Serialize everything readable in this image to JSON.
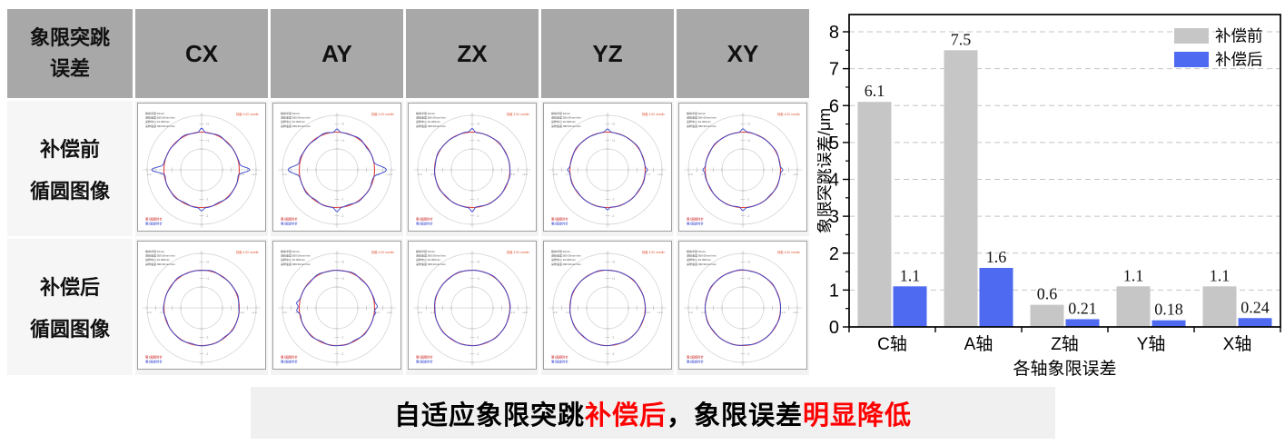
{
  "table": {
    "header": {
      "line1": "象限突跳",
      "line2": "误差"
    },
    "columns": [
      "CX",
      "AY",
      "ZX",
      "YZ",
      "XY"
    ],
    "row_labels": [
      {
        "line1": "补偿前",
        "line2": "循圆图像"
      },
      {
        "line1": "补偿后",
        "line2": "循圆图像"
      }
    ]
  },
  "plot_common": {
    "scale_label": "刻度 4.00 um/div",
    "param_lines": [
      "横向半径:10mm",
      "进给速度:500.00mm/min",
      "采样中心:10.000mm",
      "采样速度:499.92mm/min"
    ],
    "legend_lines": [
      {
        "text": "第1圈顺时针",
        "color": "#cc2222"
      },
      {
        "text": "第2圈逆时针",
        "color": "#2233cc"
      }
    ],
    "tick_labels_v": [
      "+2",
      "+1",
      "-1",
      "-2"
    ],
    "tick_labels_h": [
      "-2.0",
      "-1.0",
      "+1.0",
      "+2.0"
    ]
  },
  "plots": [
    {
      "row": "补偿前",
      "col": "CX",
      "spikes": [
        [
          180,
          13.5,
          3
        ],
        [
          0,
          11.5,
          3
        ],
        [
          90,
          4.5,
          2.5
        ],
        [
          270,
          3.5,
          2.5
        ]
      ],
      "wobble": 0.9
    },
    {
      "row": "补偿前",
      "col": "AY",
      "spikes": [
        [
          180,
          13,
          4.2
        ],
        [
          0,
          12,
          4.2
        ],
        [
          90,
          4,
          2.5
        ],
        [
          270,
          4,
          2.5
        ]
      ],
      "wobble": 1.0
    },
    {
      "row": "补偿前",
      "col": "ZX",
      "spikes": [
        [
          90,
          4,
          2.4
        ],
        [
          270,
          4.5,
          2.4
        ]
      ],
      "wobble": 0.6
    },
    {
      "row": "补偿前",
      "col": "YZ",
      "spikes": [
        [
          90,
          3,
          2.2
        ],
        [
          270,
          3,
          2.2
        ],
        [
          180,
          2.5,
          2.2
        ],
        [
          0,
          2.5,
          2.2
        ]
      ],
      "wobble": 0.55
    },
    {
      "row": "补偿前",
      "col": "XY",
      "spikes": [
        [
          90,
          3.5,
          2.4
        ],
        [
          270,
          3.5,
          2.4
        ],
        [
          180,
          2.5,
          2.2
        ],
        [
          0,
          2.5,
          2.2
        ]
      ],
      "wobble": 0.55
    },
    {
      "row": "补偿后",
      "col": "CX",
      "spikes": [],
      "wobble": 0.7
    },
    {
      "row": "补偿后",
      "col": "AY",
      "spikes": [
        [
          184,
          3,
          3
        ],
        [
          173,
          2.5,
          2.5
        ],
        [
          2,
          3,
          3
        ],
        [
          352,
          2,
          2.5
        ]
      ],
      "wobble": 0.85
    },
    {
      "row": "补偿后",
      "col": "ZX",
      "spikes": [],
      "wobble": 0.5
    },
    {
      "row": "补偿后",
      "col": "YZ",
      "spikes": [],
      "wobble": 0.5
    },
    {
      "row": "补偿后",
      "col": "XY",
      "spikes": [],
      "wobble": 0.5
    }
  ],
  "chart_data": {
    "type": "bar",
    "title": "",
    "categories": [
      "C轴",
      "A轴",
      "Z轴",
      "Y轴",
      "X轴"
    ],
    "series": [
      {
        "name": "补偿前",
        "color": "#c6c6c6",
        "values": [
          6.1,
          7.5,
          0.6,
          1.1,
          1.1
        ]
      },
      {
        "name": "补偿后",
        "color": "#4e6af0",
        "values": [
          1.1,
          1.6,
          0.21,
          0.18,
          0.24
        ]
      }
    ],
    "value_labels_series1": [
      "6.1",
      "7.5",
      "0.6",
      "1.1",
      "1.1"
    ],
    "value_labels_series2": [
      "1.1",
      "1.6",
      "0.21",
      "0.18",
      "0.24"
    ],
    "xlabel": "各轴象限误差",
    "ylabel": "象限突跳误差/μm",
    "ylim": [
      0,
      8
    ],
    "yticks": [
      0,
      1,
      2,
      3,
      4,
      5,
      6,
      7,
      8
    ],
    "grid": "dashed-horizontal",
    "legend_position": "top-right"
  },
  "caption": {
    "segments": [
      {
        "text": "自适应象限突跳",
        "color": "#000000"
      },
      {
        "text": "补偿后",
        "color": "#ff0000"
      },
      {
        "text": "，象限误差",
        "color": "#000000"
      },
      {
        "text": "明显降低",
        "color": "#ff0000"
      }
    ]
  },
  "colors": {
    "table_header_bg": "#a8a8a8",
    "caption_bg": "#f0f0f0",
    "plot_ref_circle": "#e04040",
    "plot_trace": "#3545cf",
    "grid_circle": "#cfcfcf",
    "chart_gridline": "#c4c4c4"
  }
}
